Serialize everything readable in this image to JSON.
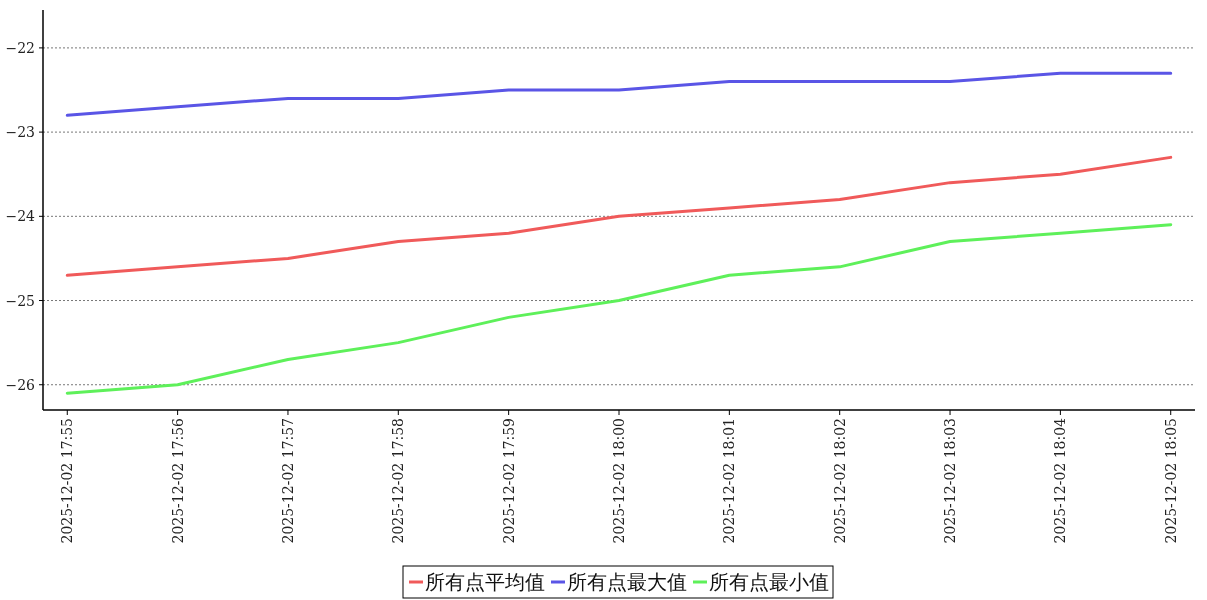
{
  "chart_data": {
    "type": "line",
    "categories": [
      "2025-12-02 17:55",
      "2025-12-02 17:56",
      "2025-12-02 17:57",
      "2025-12-02 17:58",
      "2025-12-02 17:59",
      "2025-12-02 18:00",
      "2025-12-02 18:01",
      "2025-12-02 18:02",
      "2025-12-02 18:03",
      "2025-12-02 18:04",
      "2025-12-02 18:05"
    ],
    "series": [
      {
        "name": "所有点平均值",
        "color": "#f05a5a",
        "values": [
          -24.7,
          -24.6,
          -24.5,
          -24.3,
          -24.2,
          -24.0,
          -23.9,
          -23.8,
          -23.6,
          -23.5,
          -23.3
        ]
      },
      {
        "name": "所有点最大值",
        "color": "#5a55e6",
        "values": [
          -22.8,
          -22.7,
          -22.6,
          -22.6,
          -22.5,
          -22.5,
          -22.4,
          -22.4,
          -22.4,
          -22.3,
          -22.3
        ]
      },
      {
        "name": "所有点最小值",
        "color": "#5ef05a",
        "values": [
          -26.1,
          -26.0,
          -25.7,
          -25.5,
          -25.2,
          -25.0,
          -24.7,
          -24.6,
          -24.3,
          -24.2,
          -24.1
        ]
      }
    ],
    "ylim": [
      -26.3,
      -21.55
    ],
    "yticks": [
      -26,
      -25,
      -24,
      -23,
      -22
    ],
    "grid": "y",
    "legend": "bottom",
    "marker": "none",
    "line_style": "solid"
  }
}
